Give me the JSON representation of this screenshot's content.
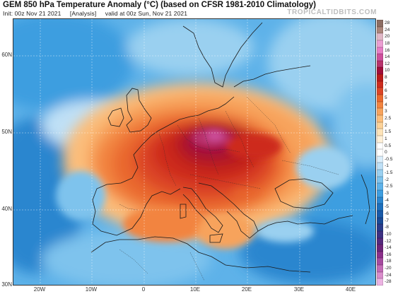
{
  "header": {
    "title": "GEM 850 hPa Temperature Anomaly (°C) (based on CFSR 1981-2010 Climatology)",
    "init": "Init: 00z Nov 21 2021",
    "forecast_hour": "[Analysis]",
    "valid": "valid at 00z Sun, Nov 21 2021",
    "brand": "TROPICALTIDBITS.COM"
  },
  "map": {
    "region": "Europe",
    "latitude_labels": [
      "60N",
      "50N",
      "40N",
      "30N"
    ],
    "longitude_labels": [
      "20W",
      "10W",
      "0",
      "10E",
      "20E",
      "30E",
      "40E"
    ],
    "warm_anomaly_center": "Central Europe (Germany, Czechia, Austria)",
    "cold_anomaly_regions": [
      "North Atlantic",
      "Eastern Mediterranean",
      "North Africa / Eastern Europe"
    ]
  },
  "colorbar": {
    "unit": "°C",
    "levels": [
      "28",
      "24",
      "20",
      "18",
      "16",
      "14",
      "12",
      "10",
      "8",
      "7",
      "6",
      "5",
      "4",
      "3",
      "2.5",
      "2",
      "1.5",
      "1",
      "0.5",
      "0",
      "-0.5",
      "-1",
      "-1.5",
      "-2",
      "-2.5",
      "-3",
      "-4",
      "-5",
      "-6",
      "-7",
      "-8",
      "-10",
      "-12",
      "-14",
      "-16",
      "-18",
      "-20",
      "-24",
      "-28"
    ],
    "colors": [
      "#8c6d63",
      "#ab857a",
      "#e0b7c6",
      "#eb9ed2",
      "#e77dc6",
      "#ce4f9c",
      "#b8336c",
      "#a10e3a",
      "#ba1a1a",
      "#cd2c1e",
      "#dc4526",
      "#e9682e",
      "#f28440",
      "#f7a35c",
      "#fbbe7b",
      "#fcd298",
      "#fde3b8",
      "#fef0d8",
      "#ffffff",
      "#ffffff",
      "#dbeefb",
      "#bfe0f6",
      "#9ad0f0",
      "#7ec3ed",
      "#5eb2e9",
      "#3e9ee0",
      "#2b86cf",
      "#1d6fbc",
      "#195aa8",
      "#1a4a96",
      "#2a3c8a",
      "#3d3182",
      "#55297d",
      "#6d2479",
      "#8b2f8a",
      "#a64a9f",
      "#c26ab6",
      "#d98ccb",
      "#ecb3e2"
    ]
  }
}
